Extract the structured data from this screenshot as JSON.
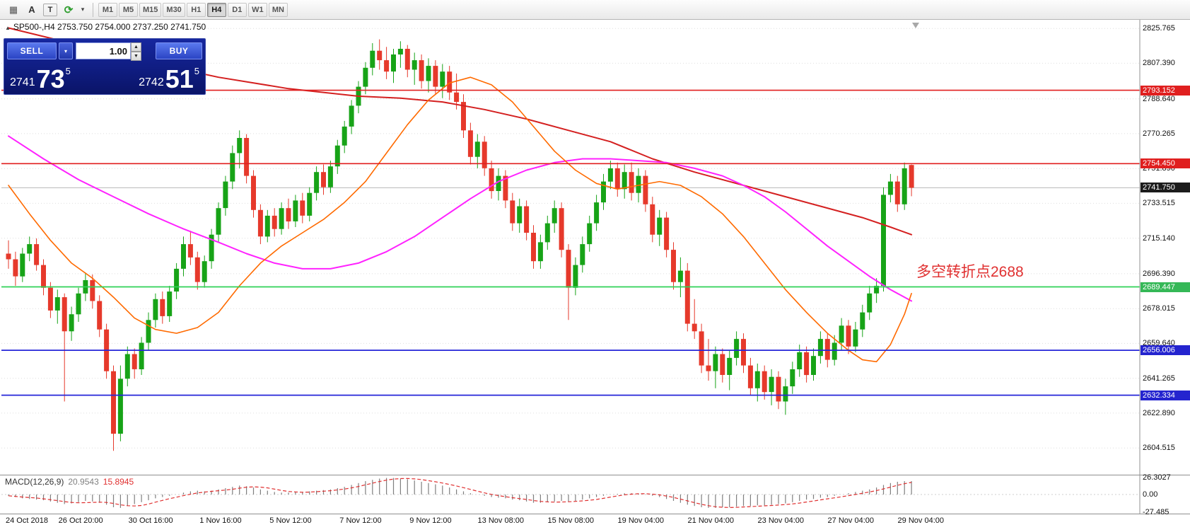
{
  "toolbar": {
    "icons": [
      {
        "name": "grid-icon",
        "glyph": "▦"
      },
      {
        "name": "letter-a-icon",
        "glyph": "A"
      },
      {
        "name": "text-tool-icon",
        "glyph": "T"
      },
      {
        "name": "refresh-icon",
        "glyph": "⟳"
      },
      {
        "name": "dropdown-caret-icon",
        "glyph": "▾"
      }
    ],
    "timeframes": [
      {
        "label": "M1",
        "active": false
      },
      {
        "label": "M5",
        "active": false
      },
      {
        "label": "M15",
        "active": false
      },
      {
        "label": "M30",
        "active": false
      },
      {
        "label": "H1",
        "active": false
      },
      {
        "label": "H4",
        "active": true
      },
      {
        "label": "D1",
        "active": false
      },
      {
        "label": "W1",
        "active": false
      },
      {
        "label": "MN",
        "active": false
      }
    ]
  },
  "symbol_header": {
    "marker": "▲",
    "text": "SP500-,H4  2753.750 2754.000 2737.250 2741.750"
  },
  "trade_panel": {
    "sell_label": "SELL",
    "buy_label": "BUY",
    "volume": "1.00",
    "sell_small": "2741",
    "sell_big": "73",
    "sell_sup": "5",
    "buy_small": "2742",
    "buy_big": "51",
    "buy_sup": "5"
  },
  "annotation": {
    "text": "多空转折点2688"
  },
  "macd_panel": {
    "title": "MACD(12,26,9)",
    "value": "20.9543",
    "signal_value": "15.8945",
    "ticks": [
      {
        "label": "26.3027",
        "value": 26.3027
      },
      {
        "label": "0.00",
        "value": 0
      },
      {
        "label": "-27.485",
        "value": -27.485
      }
    ]
  },
  "price_axis_ticks": [
    2825.765,
    2807.39,
    2788.64,
    2770.265,
    2751.89,
    2733.515,
    2715.14,
    2696.39,
    2678.015,
    2659.64,
    2641.265,
    2622.89,
    2604.515
  ],
  "time_axis": {
    "every_bars": 10,
    "labels": [
      "24 Oct 2018",
      "26 Oct 20:00",
      "30 Oct 16:00",
      "1 Nov 16:00",
      "5 Nov 12:00",
      "7 Nov 12:00",
      "9 Nov 12:00",
      "13 Nov 08:00",
      "15 Nov 08:00",
      "19 Nov 04:00",
      "21 Nov 04:00",
      "23 Nov 04:00",
      "27 Nov 04:00",
      "29 Nov 04:00"
    ]
  },
  "chart_data": {
    "type": "candlestick",
    "symbol": "SP500-",
    "timeframe": "H4",
    "price_range": {
      "max": 2830.3,
      "min": 2590.4
    },
    "macd_range": {
      "max": 30,
      "min": -30
    },
    "colors": {
      "up": "#17a317",
      "down": "#e6392b",
      "hist": "#7f7f7f",
      "signal": "#e03030"
    },
    "hlines": [
      {
        "name": "resistance-line-2793",
        "price": 2793.152,
        "color": "#e01f1f",
        "label_bg": "#e01f1f",
        "width": 1.6
      },
      {
        "name": "resistance-line-2754",
        "price": 2754.45,
        "color": "#e01f1f",
        "label_bg": "#e01f1f",
        "width": 1.6
      },
      {
        "name": "current-price-line",
        "price": 2741.75,
        "color": "#b8b8b8",
        "label_bg": "#1c1c1c",
        "width": 1,
        "current": true
      },
      {
        "name": "pivot-line-2689",
        "price": 2689.447,
        "color": "#2fd156",
        "label_bg": "#35b857",
        "width": 1.8
      },
      {
        "name": "support-line-2656",
        "price": 2656.006,
        "color": "#2626d8",
        "label_bg": "#2424cf",
        "width": 1.8
      },
      {
        "name": "support-line-2632",
        "price": 2632.334,
        "color": "#2626d8",
        "label_bg": "#2424cf",
        "width": 1.8
      }
    ],
    "ma_slow": {
      "color": "#d42020",
      "width": 2,
      "points": [
        [
          0,
          2826
        ],
        [
          10,
          2817
        ],
        [
          20,
          2808
        ],
        [
          30,
          2800
        ],
        [
          40,
          2794
        ],
        [
          50,
          2790
        ],
        [
          56,
          2789
        ],
        [
          62,
          2787
        ],
        [
          68,
          2783
        ],
        [
          74,
          2778
        ],
        [
          80,
          2772
        ],
        [
          86,
          2766
        ],
        [
          92,
          2757
        ],
        [
          98,
          2750
        ],
        [
          104,
          2744
        ],
        [
          110,
          2738
        ],
        [
          116,
          2732
        ],
        [
          122,
          2726
        ],
        [
          126,
          2721
        ],
        [
          129,
          2717
        ]
      ]
    },
    "ma_mid": {
      "color": "#ff22ff",
      "width": 2,
      "points": [
        [
          0,
          2769
        ],
        [
          5,
          2757
        ],
        [
          10,
          2746
        ],
        [
          15,
          2737
        ],
        [
          20,
          2728
        ],
        [
          25,
          2720
        ],
        [
          30,
          2713
        ],
        [
          34,
          2707
        ],
        [
          38,
          2702
        ],
        [
          42,
          2699
        ],
        [
          46,
          2699
        ],
        [
          50,
          2702
        ],
        [
          54,
          2708
        ],
        [
          58,
          2716
        ],
        [
          62,
          2726
        ],
        [
          66,
          2736
        ],
        [
          70,
          2745
        ],
        [
          74,
          2751
        ],
        [
          78,
          2755
        ],
        [
          82,
          2757
        ],
        [
          86,
          2757
        ],
        [
          90,
          2756
        ],
        [
          94,
          2755
        ],
        [
          98,
          2752
        ],
        [
          102,
          2748
        ],
        [
          105,
          2743
        ],
        [
          108,
          2737
        ],
        [
          111,
          2729
        ],
        [
          114,
          2720
        ],
        [
          117,
          2711
        ],
        [
          120,
          2703
        ],
        [
          123,
          2695
        ],
        [
          126,
          2688
        ],
        [
          129,
          2682
        ]
      ]
    },
    "ma_fast": {
      "color": "#ff6a00",
      "width": 1.6,
      "points": [
        [
          0,
          2743
        ],
        [
          3,
          2728
        ],
        [
          6,
          2714
        ],
        [
          9,
          2702
        ],
        [
          12,
          2694
        ],
        [
          15,
          2684
        ],
        [
          18,
          2673
        ],
        [
          21,
          2667
        ],
        [
          24,
          2665
        ],
        [
          27,
          2668
        ],
        [
          30,
          2676
        ],
        [
          33,
          2690
        ],
        [
          36,
          2702
        ],
        [
          39,
          2711
        ],
        [
          42,
          2718
        ],
        [
          45,
          2725
        ],
        [
          48,
          2734
        ],
        [
          51,
          2745
        ],
        [
          54,
          2760
        ],
        [
          57,
          2775
        ],
        [
          60,
          2788
        ],
        [
          63,
          2797
        ],
        [
          66,
          2800
        ],
        [
          69,
          2796
        ],
        [
          72,
          2787
        ],
        [
          75,
          2774
        ],
        [
          78,
          2761
        ],
        [
          81,
          2751
        ],
        [
          84,
          2744
        ],
        [
          87,
          2741
        ],
        [
          90,
          2743
        ],
        [
          93,
          2745
        ],
        [
          96,
          2743
        ],
        [
          99,
          2737
        ],
        [
          102,
          2728
        ],
        [
          105,
          2716
        ],
        [
          108,
          2702
        ],
        [
          111,
          2688
        ],
        [
          114,
          2676
        ],
        [
          117,
          2665
        ],
        [
          120,
          2656
        ],
        [
          122,
          2651
        ],
        [
          124,
          2650
        ],
        [
          126,
          2659
        ],
        [
          128,
          2675
        ],
        [
          129,
          2686
        ]
      ]
    },
    "candles": [
      [
        2707,
        2714,
        2699,
        2704
      ],
      [
        2704,
        2708,
        2690,
        2695
      ],
      [
        2695,
        2710,
        2692,
        2707
      ],
      [
        2707,
        2716,
        2703,
        2712
      ],
      [
        2712,
        2715,
        2698,
        2701
      ],
      [
        2701,
        2704,
        2685,
        2689
      ],
      [
        2689,
        2692,
        2673,
        2677
      ],
      [
        2677,
        2688,
        2670,
        2684
      ],
      [
        2684,
        2686,
        2629,
        2666
      ],
      [
        2666,
        2679,
        2661,
        2675
      ],
      [
        2675,
        2689,
        2671,
        2686
      ],
      [
        2686,
        2697,
        2682,
        2693
      ],
      [
        2693,
        2696,
        2678,
        2682
      ],
      [
        2682,
        2685,
        2663,
        2667
      ],
      [
        2667,
        2670,
        2641,
        2645
      ],
      [
        2645,
        2648,
        2603,
        2612
      ],
      [
        2612,
        2648,
        2608,
        2641
      ],
      [
        2641,
        2658,
        2637,
        2654
      ],
      [
        2654,
        2657,
        2641,
        2646
      ],
      [
        2646,
        2663,
        2643,
        2660
      ],
      [
        2660,
        2676,
        2656,
        2672
      ],
      [
        2672,
        2686,
        2668,
        2683
      ],
      [
        2683,
        2687,
        2670,
        2674
      ],
      [
        2674,
        2690,
        2671,
        2687
      ],
      [
        2687,
        2702,
        2683,
        2699
      ],
      [
        2699,
        2716,
        2695,
        2712
      ],
      [
        2712,
        2719,
        2701,
        2705
      ],
      [
        2705,
        2708,
        2688,
        2692
      ],
      [
        2692,
        2706,
        2689,
        2703
      ],
      [
        2703,
        2720,
        2699,
        2717
      ],
      [
        2717,
        2734,
        2713,
        2731
      ],
      [
        2731,
        2748,
        2727,
        2745
      ],
      [
        2745,
        2764,
        2741,
        2760
      ],
      [
        2760,
        2772,
        2752,
        2768
      ],
      [
        2768,
        2770,
        2744,
        2748
      ],
      [
        2748,
        2751,
        2726,
        2730
      ],
      [
        2730,
        2733,
        2712,
        2716
      ],
      [
        2716,
        2730,
        2713,
        2727
      ],
      [
        2727,
        2731,
        2716,
        2720
      ],
      [
        2720,
        2734,
        2717,
        2731
      ],
      [
        2731,
        2736,
        2720,
        2724
      ],
      [
        2724,
        2738,
        2721,
        2735
      ],
      [
        2735,
        2739,
        2723,
        2727
      ],
      [
        2727,
        2742,
        2724,
        2739
      ],
      [
        2739,
        2753,
        2735,
        2750
      ],
      [
        2750,
        2754,
        2738,
        2742
      ],
      [
        2742,
        2756,
        2739,
        2753
      ],
      [
        2753,
        2767,
        2749,
        2764
      ],
      [
        2764,
        2777,
        2760,
        2774
      ],
      [
        2774,
        2788,
        2770,
        2785
      ],
      [
        2785,
        2798,
        2781,
        2795
      ],
      [
        2795,
        2808,
        2791,
        2805
      ],
      [
        2805,
        2818,
        2801,
        2814
      ],
      [
        2814,
        2820,
        2804,
        2809
      ],
      [
        2809,
        2816,
        2799,
        2803
      ],
      [
        2803,
        2815,
        2797,
        2812
      ],
      [
        2812,
        2819,
        2805,
        2815
      ],
      [
        2815,
        2817,
        2800,
        2804
      ],
      [
        2804,
        2813,
        2796,
        2809
      ],
      [
        2809,
        2812,
        2794,
        2798
      ],
      [
        2798,
        2810,
        2792,
        2806
      ],
      [
        2806,
        2809,
        2791,
        2795
      ],
      [
        2795,
        2807,
        2789,
        2803
      ],
      [
        2803,
        2806,
        2788,
        2792
      ],
      [
        2792,
        2802,
        2783,
        2787
      ],
      [
        2787,
        2791,
        2768,
        2772
      ],
      [
        2772,
        2776,
        2754,
        2758
      ],
      [
        2758,
        2770,
        2752,
        2766
      ],
      [
        2766,
        2769,
        2748,
        2752
      ],
      [
        2752,
        2756,
        2736,
        2740
      ],
      [
        2740,
        2752,
        2735,
        2748
      ],
      [
        2748,
        2751,
        2731,
        2735
      ],
      [
        2735,
        2739,
        2719,
        2723
      ],
      [
        2723,
        2736,
        2718,
        2732
      ],
      [
        2732,
        2735,
        2714,
        2718
      ],
      [
        2718,
        2722,
        2699,
        2703
      ],
      [
        2703,
        2717,
        2699,
        2713
      ],
      [
        2713,
        2727,
        2709,
        2723
      ],
      [
        2723,
        2735,
        2718,
        2731
      ],
      [
        2731,
        2734,
        2705,
        2709
      ],
      [
        2709,
        2712,
        2672,
        2689
      ],
      [
        2689,
        2705,
        2685,
        2701
      ],
      [
        2701,
        2716,
        2697,
        2712
      ],
      [
        2712,
        2727,
        2708,
        2723
      ],
      [
        2723,
        2738,
        2719,
        2734
      ],
      [
        2734,
        2749,
        2730,
        2745
      ],
      [
        2745,
        2756,
        2741,
        2752
      ],
      [
        2752,
        2755,
        2737,
        2741
      ],
      [
        2741,
        2754,
        2736,
        2750
      ],
      [
        2750,
        2755,
        2735,
        2739
      ],
      [
        2739,
        2752,
        2734,
        2748
      ],
      [
        2748,
        2751,
        2729,
        2733
      ],
      [
        2733,
        2737,
        2713,
        2717
      ],
      [
        2717,
        2730,
        2711,
        2726
      ],
      [
        2726,
        2729,
        2705,
        2709
      ],
      [
        2709,
        2713,
        2688,
        2692
      ],
      [
        2692,
        2705,
        2684,
        2698
      ],
      [
        2698,
        2702,
        2666,
        2670
      ],
      [
        2670,
        2683,
        2662,
        2666
      ],
      [
        2666,
        2670,
        2644,
        2648
      ],
      [
        2648,
        2662,
        2640,
        2645
      ],
      [
        2645,
        2658,
        2636,
        2654
      ],
      [
        2654,
        2657,
        2639,
        2643
      ],
      [
        2643,
        2656,
        2635,
        2652
      ],
      [
        2652,
        2666,
        2648,
        2662
      ],
      [
        2662,
        2665,
        2644,
        2648
      ],
      [
        2648,
        2652,
        2632,
        2636
      ],
      [
        2636,
        2649,
        2629,
        2645
      ],
      [
        2645,
        2648,
        2630,
        2634
      ],
      [
        2634,
        2646,
        2627,
        2642
      ],
      [
        2642,
        2645,
        2625,
        2629
      ],
      [
        2629,
        2641,
        2622,
        2637
      ],
      [
        2637,
        2650,
        2633,
        2646
      ],
      [
        2646,
        2659,
        2642,
        2655
      ],
      [
        2655,
        2658,
        2639,
        2643
      ],
      [
        2643,
        2657,
        2640,
        2653
      ],
      [
        2653,
        2666,
        2649,
        2662
      ],
      [
        2662,
        2665,
        2647,
        2651
      ],
      [
        2651,
        2664,
        2648,
        2660
      ],
      [
        2660,
        2673,
        2656,
        2669
      ],
      [
        2669,
        2672,
        2654,
        2658
      ],
      [
        2658,
        2671,
        2655,
        2667
      ],
      [
        2667,
        2680,
        2663,
        2676
      ],
      [
        2676,
        2690,
        2672,
        2686
      ],
      [
        2686,
        2694,
        2681,
        2690
      ],
      [
        2690,
        2742,
        2687,
        2738
      ],
      [
        2738,
        2749,
        2734,
        2745
      ],
      [
        2745,
        2748,
        2729,
        2733
      ],
      [
        2733,
        2755,
        2730,
        2752
      ],
      [
        2753.75,
        2754,
        2737.25,
        2741.75
      ]
    ],
    "macd_hist": [
      -2,
      -4,
      -6,
      -7,
      -8,
      -9,
      -11,
      -13,
      -15,
      -14,
      -12,
      -10,
      -11,
      -13,
      -16,
      -20,
      -21,
      -18,
      -15,
      -12,
      -9,
      -6,
      -4,
      -2,
      0,
      3,
      5,
      6,
      5,
      6,
      8,
      10,
      12,
      14,
      13,
      11,
      8,
      6,
      4,
      3,
      3,
      4,
      4,
      5,
      6,
      7,
      8,
      10,
      12,
      15,
      18,
      21,
      23,
      25,
      26,
      26,
      25,
      24,
      22,
      20,
      18,
      16,
      14,
      11,
      8,
      5,
      2,
      0,
      -2,
      -4,
      -5,
      -6,
      -8,
      -9,
      -11,
      -13,
      -13,
      -12,
      -11,
      -10,
      -11,
      -10,
      -8,
      -6,
      -4,
      -2,
      0,
      1,
      2,
      2,
      1,
      0,
      -2,
      -4,
      -7,
      -10,
      -13,
      -16,
      -18,
      -20,
      -21,
      -21,
      -20,
      -20,
      -19,
      -18,
      -18,
      -17,
      -17,
      -16,
      -15,
      -14,
      -12,
      -10,
      -8,
      -7,
      -5,
      -4,
      -2,
      0,
      2,
      4,
      6,
      8,
      11,
      15,
      18,
      20,
      21,
      21
    ]
  }
}
